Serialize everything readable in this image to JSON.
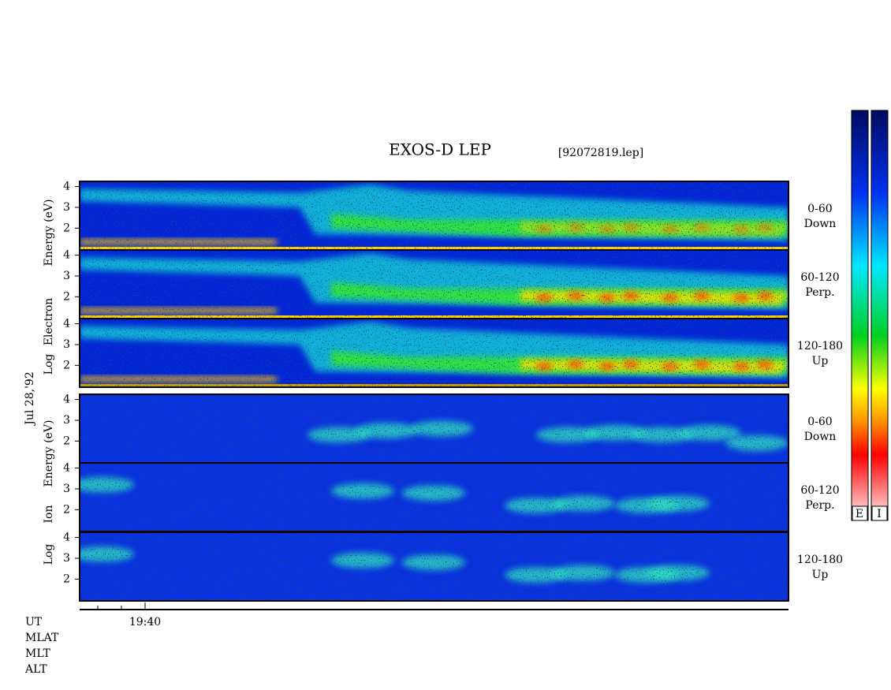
{
  "title": "EXOS-D LEP",
  "file": "[92072819.lep]",
  "date_label": "Jul 28,'92",
  "ylim": [
    0.95,
    4.25
  ],
  "yticks": [
    2,
    3,
    4
  ],
  "electron_axis": {
    "words": [
      "Energy (eV)",
      "Electron",
      "Log"
    ]
  },
  "ion_axis": {
    "words": [
      "Energy (eV)",
      "Ion",
      "Log"
    ]
  },
  "electron_panels": [
    {
      "angle": "0-60",
      "direction": "Down"
    },
    {
      "angle": "60-120",
      "direction": "Perp."
    },
    {
      "angle": "120-180",
      "direction": "Up"
    }
  ],
  "ion_panels": [
    {
      "angle": "0-60",
      "direction": "Down"
    },
    {
      "angle": "60-120",
      "direction": "Perp."
    },
    {
      "angle": "120-180",
      "direction": "Up"
    }
  ],
  "time_label": "19:40",
  "row_labels": [
    "UT",
    "MLAT",
    "MLT",
    "ALT"
  ],
  "colorbar_labels": [
    "E",
    "I"
  ]
}
